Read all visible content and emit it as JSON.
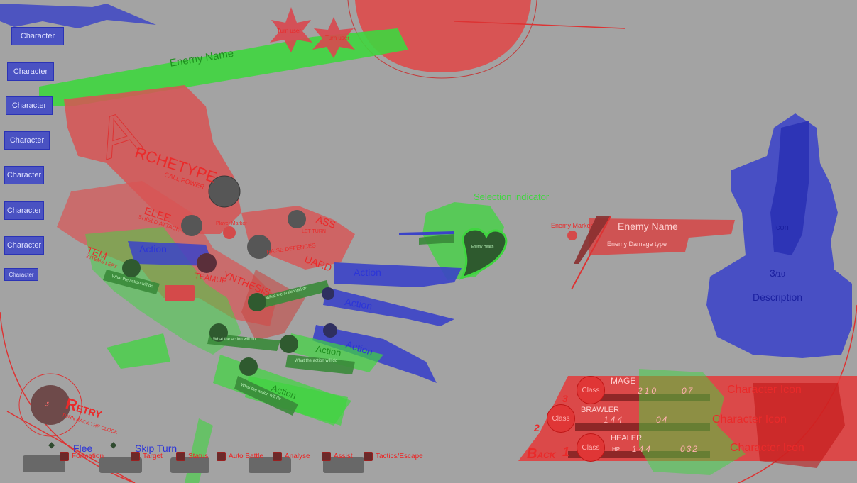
{
  "enemy_name_top": "Enemy Name",
  "turn_order": [
    "Turn user",
    "Turn user"
  ],
  "character_tabs": [
    "Character",
    "Character",
    "Character",
    "Character",
    "Character",
    "Character",
    "Character",
    "Character"
  ],
  "menu_words": {
    "archetype": "RCHETYPE",
    "call_power": "CALL POWER",
    "melee": "ELEE",
    "shield_attack": "SHIELD ATTACK",
    "item": "TEM",
    "item_sub": "2 ITEMS LEFT",
    "teamup": "TEAMUP",
    "synthesis": "YNTHESIS",
    "guard": "UARD",
    "guard_sub": "RAISE DEFENCES",
    "pass": "ASS",
    "pass_sub": "LET TURN",
    "player_marker": "Player Marker",
    "what_action_does": "What the action will do"
  },
  "actions": [
    "Action",
    "Action",
    "Action",
    "Action",
    "Action",
    "Action"
  ],
  "selection_indicator": "Selection indicator",
  "enemy_health": "Enemy Health",
  "enemy_marker": "Enemy Marker",
  "enemy_panel": {
    "name": "Enemy Name",
    "damage_type": "Enemy Damage type"
  },
  "description_panel": {
    "icon": "Icon",
    "count": "3",
    "count_total": "/10",
    "description": "Description"
  },
  "retry": {
    "label": "ETRY",
    "initial": "R",
    "sub": "TURN BACK THE CLOCK"
  },
  "flee_label": "Flee",
  "skip_turn_label": "Skip Turn",
  "controls": [
    "Formation",
    "Target",
    "Status",
    "Auto Battle",
    "Analyse",
    "Assist",
    "Tactics/Escape"
  ],
  "back": {
    "initial": "B",
    "label": "ACK"
  },
  "party": [
    {
      "row": "3",
      "class_badge": "Class",
      "class_name": "MAGE",
      "hp": "210",
      "mp": "07",
      "portrait": "Character Icon"
    },
    {
      "row": "2",
      "class_badge": "Class",
      "class_name": "BRAWLER",
      "hp": "144",
      "mp": "04",
      "portrait": "Character Icon"
    },
    {
      "row": "1",
      "class_badge": "Class",
      "class_name": "HEALER",
      "hp": "144",
      "mp": "032",
      "hp_label": "HP",
      "portrait": "Character Icon"
    }
  ],
  "colors": {
    "background": "#a3a3a3",
    "red": "#e03636",
    "green": "#3fd63f",
    "blue": "#3b43c8"
  }
}
